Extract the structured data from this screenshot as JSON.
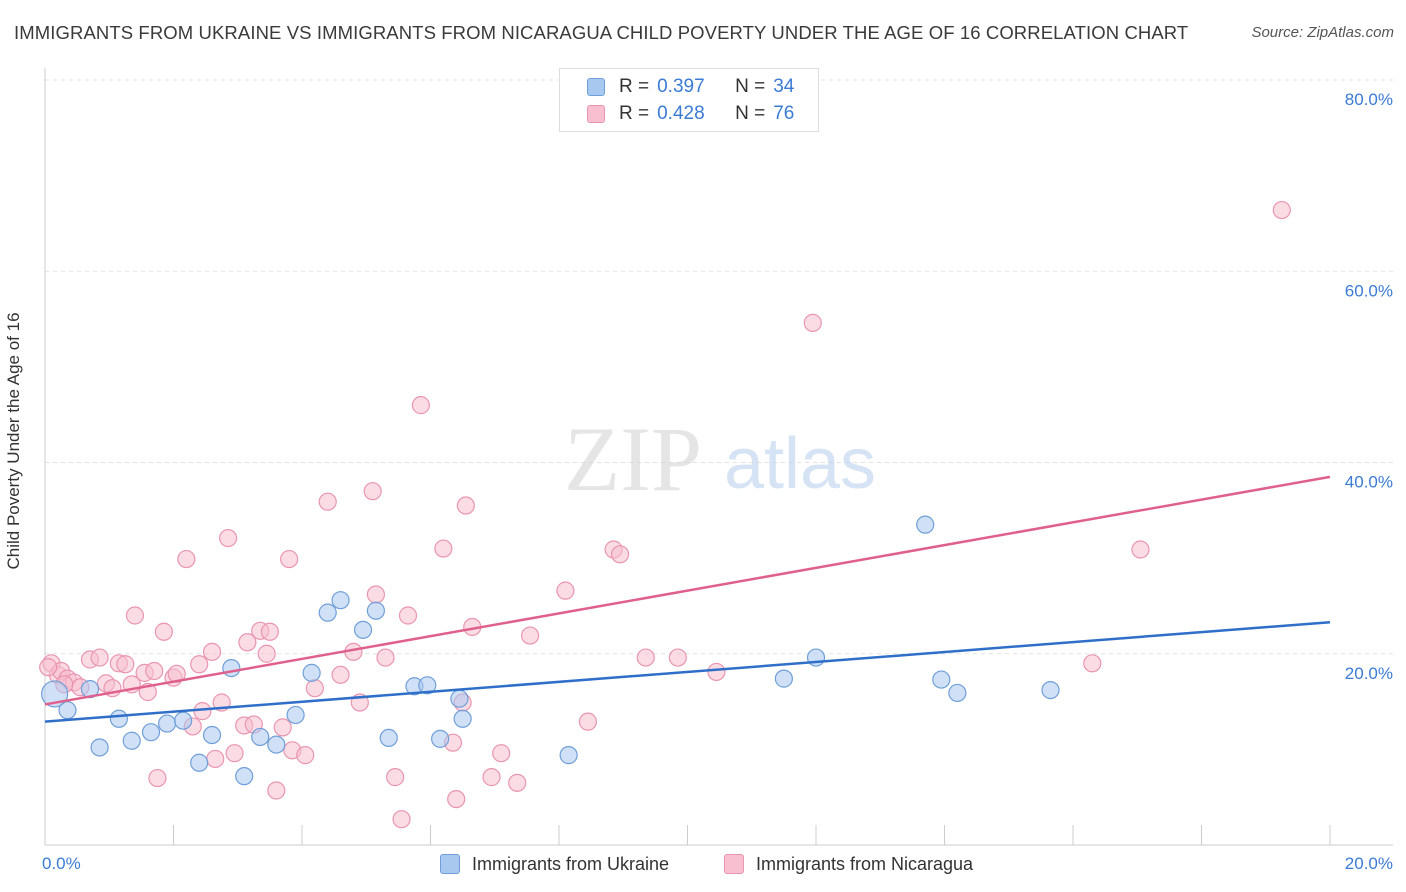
{
  "header": {
    "title": "IMMIGRANTS FROM UKRAINE VS IMMIGRANTS FROM NICARAGUA CHILD POVERTY UNDER THE AGE OF 16 CORRELATION CHART",
    "source": "Source: ZipAtlas.com"
  },
  "watermark": {
    "zip": "ZIP",
    "atlas": "atlas"
  },
  "legend": {
    "r_label": "R =",
    "n_label": "N =",
    "ukraine": {
      "r": "0.397",
      "n": "34"
    },
    "nicaragua": {
      "r": "0.428",
      "n": "76"
    }
  },
  "bottom_legend": {
    "ukraine": "Immigrants from Ukraine",
    "nicaragua": "Immigrants from Nicaragua"
  },
  "colors": {
    "ukraine_fill": "#a9c8f0",
    "ukraine_stroke": "#6f9fd8",
    "ukraine_line": "#2f6fc9",
    "nicaragua_fill": "#f7bfd0",
    "nicaragua_stroke": "#e995b0",
    "nicaragua_line": "#e0608d",
    "axis_label": "#3a7bd5",
    "grid": "#e2e2e2"
  },
  "chart_data": {
    "type": "scatter",
    "title": "IMMIGRANTS FROM UKRAINE VS IMMIGRANTS FROM NICARAGUA CHILD POVERTY UNDER THE AGE OF 16 CORRELATION CHART",
    "xlabel": "",
    "ylabel": "Child Poverty Under the Age of 16",
    "xlim": [
      0,
      20
    ],
    "ylim": [
      0,
      80
    ],
    "x_tick_labels": {
      "min": "0.0%",
      "max": "20.0%"
    },
    "y_ticks": [
      20,
      40,
      60,
      80
    ],
    "y_tick_labels": [
      "20.0%",
      "40.0%",
      "60.0%",
      "80.0%"
    ],
    "series": [
      {
        "name": "Immigrants from Ukraine",
        "r": 0.397,
        "n": 34,
        "trend": {
          "x": [
            0,
            20
          ],
          "y": [
            12.9,
            23.3
          ]
        },
        "points": [
          [
            0.15,
            15.8
          ],
          [
            0.35,
            14.1
          ],
          [
            0.7,
            16.3
          ],
          [
            0.85,
            10.2
          ],
          [
            1.15,
            13.2
          ],
          [
            1.35,
            10.9
          ],
          [
            1.65,
            11.8
          ],
          [
            1.9,
            12.7
          ],
          [
            2.15,
            13.0
          ],
          [
            2.4,
            8.6
          ],
          [
            2.6,
            11.5
          ],
          [
            2.9,
            18.5
          ],
          [
            3.1,
            7.2
          ],
          [
            3.35,
            11.3
          ],
          [
            3.6,
            10.5
          ],
          [
            3.9,
            13.6
          ],
          [
            4.15,
            18.0
          ],
          [
            4.4,
            24.3
          ],
          [
            4.6,
            25.6
          ],
          [
            4.95,
            22.5
          ],
          [
            5.15,
            24.5
          ],
          [
            5.35,
            11.2
          ],
          [
            5.75,
            16.6
          ],
          [
            5.95,
            16.7
          ],
          [
            6.15,
            11.1
          ],
          [
            6.45,
            15.3
          ],
          [
            6.5,
            13.2
          ],
          [
            8.15,
            9.4
          ],
          [
            11.5,
            17.4
          ],
          [
            12.0,
            19.6
          ],
          [
            13.7,
            33.5
          ],
          [
            13.95,
            17.3
          ],
          [
            14.2,
            15.9
          ],
          [
            15.65,
            16.2
          ]
        ]
      },
      {
        "name": "Immigrants from Nicaragua",
        "r": 0.428,
        "n": 76,
        "trend": {
          "x": [
            0,
            20
          ],
          "y": [
            14.7,
            38.5
          ]
        },
        "points": [
          [
            0.1,
            19.0
          ],
          [
            0.2,
            17.8
          ],
          [
            0.25,
            18.2
          ],
          [
            0.35,
            17.4
          ],
          [
            0.45,
            17.0
          ],
          [
            0.55,
            16.5
          ],
          [
            0.7,
            19.4
          ],
          [
            0.85,
            19.6
          ],
          [
            0.95,
            16.9
          ],
          [
            1.05,
            16.4
          ],
          [
            1.15,
            19.0
          ],
          [
            1.25,
            18.9
          ],
          [
            1.35,
            16.8
          ],
          [
            1.4,
            24.0
          ],
          [
            1.55,
            18.0
          ],
          [
            1.6,
            16.0
          ],
          [
            1.7,
            18.2
          ],
          [
            1.75,
            7.0
          ],
          [
            1.85,
            22.3
          ],
          [
            2.0,
            17.5
          ],
          [
            2.05,
            17.9
          ],
          [
            2.2,
            29.9
          ],
          [
            2.3,
            12.4
          ],
          [
            2.4,
            18.9
          ],
          [
            2.45,
            14.0
          ],
          [
            2.6,
            20.2
          ],
          [
            2.65,
            9.0
          ],
          [
            2.75,
            14.9
          ],
          [
            2.85,
            32.1
          ],
          [
            2.95,
            9.6
          ],
          [
            3.1,
            12.5
          ],
          [
            3.15,
            21.2
          ],
          [
            3.25,
            12.6
          ],
          [
            3.35,
            22.4
          ],
          [
            3.45,
            20.0
          ],
          [
            3.5,
            22.3
          ],
          [
            3.6,
            5.7
          ],
          [
            3.7,
            12.3
          ],
          [
            3.8,
            29.9
          ],
          [
            3.85,
            9.9
          ],
          [
            4.05,
            9.4
          ],
          [
            4.2,
            16.4
          ],
          [
            4.4,
            35.9
          ],
          [
            4.6,
            17.8
          ],
          [
            4.8,
            20.2
          ],
          [
            4.9,
            14.9
          ],
          [
            5.1,
            37.0
          ],
          [
            5.15,
            26.2
          ],
          [
            5.3,
            19.6
          ],
          [
            5.45,
            7.1
          ],
          [
            5.55,
            2.7
          ],
          [
            5.65,
            24.0
          ],
          [
            5.85,
            46.0
          ],
          [
            6.2,
            31.0
          ],
          [
            6.35,
            10.7
          ],
          [
            6.4,
            4.8
          ],
          [
            6.5,
            14.9
          ],
          [
            6.55,
            35.5
          ],
          [
            6.65,
            22.8
          ],
          [
            6.95,
            7.1
          ],
          [
            7.1,
            9.6
          ],
          [
            7.35,
            6.5
          ],
          [
            7.55,
            21.9
          ],
          [
            8.1,
            26.6
          ],
          [
            8.45,
            12.9
          ],
          [
            8.85,
            30.9
          ],
          [
            8.95,
            30.4
          ],
          [
            9.35,
            19.6
          ],
          [
            9.85,
            19.6
          ],
          [
            10.45,
            18.1
          ],
          [
            11.95,
            54.6
          ],
          [
            16.3,
            19.0
          ],
          [
            17.05,
            30.9
          ],
          [
            19.25,
            66.4
          ],
          [
            0.05,
            18.6
          ],
          [
            0.3,
            16.8
          ]
        ]
      }
    ]
  }
}
